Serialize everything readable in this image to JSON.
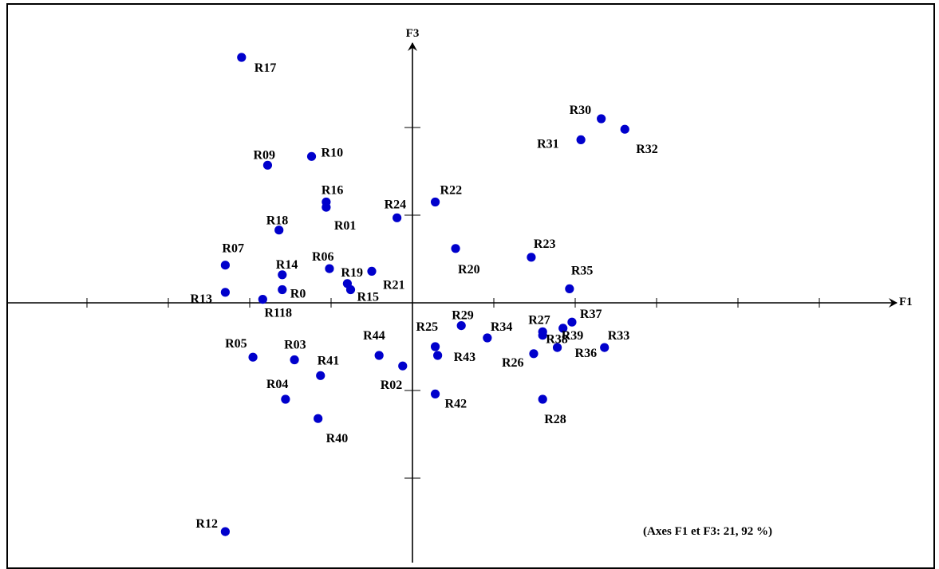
{
  "chart_data": {
    "type": "scatter",
    "xlabel": "F1",
    "ylabel": "F3",
    "annotation": "(Axes F1 et F3:  21, 92 %)",
    "point_color": "#0000cc",
    "grid": false,
    "points": [
      {
        "label": "R17",
        "x": -2.1,
        "y": 2.8
      },
      {
        "label": "R09",
        "x": -1.78,
        "y": 1.57
      },
      {
        "label": "R10",
        "x": -1.24,
        "y": 1.67
      },
      {
        "label": "R16",
        "x": -1.06,
        "y": 1.15
      },
      {
        "label": "R01",
        "x": -1.06,
        "y": 1.09
      },
      {
        "label": "R18",
        "x": -1.64,
        "y": 0.83
      },
      {
        "label": "R24",
        "x": -0.19,
        "y": 0.97
      },
      {
        "label": "R22",
        "x": 0.28,
        "y": 1.15
      },
      {
        "label": "R07",
        "x": -2.3,
        "y": 0.43
      },
      {
        "label": "R14",
        "x": -1.6,
        "y": 0.32
      },
      {
        "label": "R06",
        "x": -1.02,
        "y": 0.39
      },
      {
        "label": "R19",
        "x": -0.8,
        "y": 0.22
      },
      {
        "label": "R21",
        "x": -0.5,
        "y": 0.36
      },
      {
        "label": "R15",
        "x": -0.76,
        "y": 0.15
      },
      {
        "label": "R0",
        "x": -1.6,
        "y": 0.15
      },
      {
        "label": "R13",
        "x": -2.3,
        "y": 0.12
      },
      {
        "label": "R118",
        "x": -1.84,
        "y": 0.04
      },
      {
        "label": "R20",
        "x": 0.53,
        "y": 0.62
      },
      {
        "label": "R23",
        "x": 1.46,
        "y": 0.52
      },
      {
        "label": "R35",
        "x": 1.93,
        "y": 0.16
      },
      {
        "label": "R30",
        "x": 2.32,
        "y": 2.1
      },
      {
        "label": "R31",
        "x": 2.07,
        "y": 1.86
      },
      {
        "label": "R32",
        "x": 2.61,
        "y": 1.98
      },
      {
        "label": "R05",
        "x": -1.96,
        "y": -0.62
      },
      {
        "label": "R03",
        "x": -1.45,
        "y": -0.65
      },
      {
        "label": "R41",
        "x": -1.13,
        "y": -0.83
      },
      {
        "label": "R04",
        "x": -1.56,
        "y": -1.1
      },
      {
        "label": "R40",
        "x": -1.16,
        "y": -1.32
      },
      {
        "label": "R44",
        "x": -0.41,
        "y": -0.6
      },
      {
        "label": "R02",
        "x": -0.12,
        "y": -0.72
      },
      {
        "label": "R25",
        "x": 0.28,
        "y": -0.5
      },
      {
        "label": "R43",
        "x": 0.31,
        "y": -0.6
      },
      {
        "label": "R42",
        "x": 0.28,
        "y": -1.04
      },
      {
        "label": "R29",
        "x": 0.6,
        "y": -0.26
      },
      {
        "label": "R34",
        "x": 0.92,
        "y": -0.4
      },
      {
        "label": "R27",
        "x": 1.6,
        "y": -0.33
      },
      {
        "label": "R38",
        "x": 1.6,
        "y": -0.37
      },
      {
        "label": "R37",
        "x": 1.96,
        "y": -0.22
      },
      {
        "label": "R33",
        "x": 2.36,
        "y": -0.51
      },
      {
        "label": "R36",
        "x": 1.78,
        "y": -0.51
      },
      {
        "label": "R39",
        "x": 1.85,
        "y": -0.29
      },
      {
        "label": "R26",
        "x": 1.49,
        "y": -0.58
      },
      {
        "label": "R28",
        "x": 1.6,
        "y": -1.1
      },
      {
        "label": "R12",
        "x": -2.3,
        "y": -2.61
      }
    ]
  }
}
